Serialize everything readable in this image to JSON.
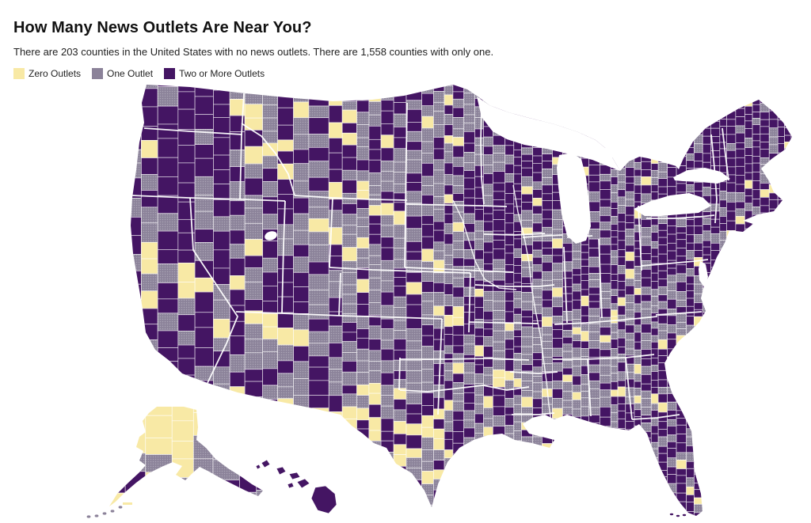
{
  "header": {
    "title": "How Many News Outlets Are Near You?",
    "subtitle": "There are 203 counties in the United States with no news outlets. There are 1,558 counties with only one."
  },
  "legend": {
    "items": [
      {
        "label": "Zero Outlets",
        "color": "#f8e9a5"
      },
      {
        "label": "One Outlet",
        "color": "#8b8299"
      },
      {
        "label": "Two or More Outlets",
        "color": "#441563"
      }
    ]
  },
  "chart_data": {
    "type": "choropleth_map",
    "title": "How Many News Outlets Are Near You?",
    "region": "United States counties (contiguous US, with Alaska and Hawaii insets at lower left)",
    "categories": [
      "Zero Outlets",
      "One Outlet",
      "Two or More Outlets"
    ],
    "stats": {
      "counties_with_zero_outlets": 203,
      "counties_with_one_outlet": 1558
    },
    "colors": {
      "zero_outlets": "#f8e9a5",
      "one_outlet": "#8b8299",
      "two_or_more_outlets": "#441563",
      "county_border": "#ffffff",
      "background": "#ffffff"
    },
    "encoding": "One-outlet counties rendered with fine white dot stipple texture; county borders thin white; state borders thicker white",
    "legend_position": "top-left"
  }
}
